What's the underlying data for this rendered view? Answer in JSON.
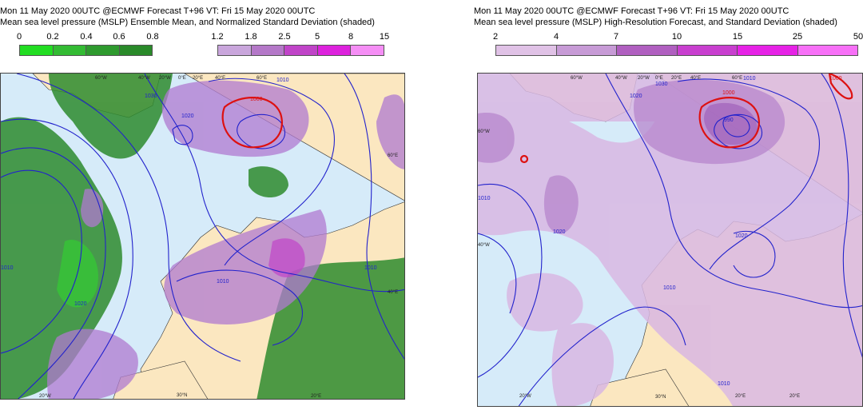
{
  "left_panel": {
    "title_line1": "Mon 11 May 2020 00UTC @ECMWF Forecast T+96 VT: Fri 15 May 2020 00UTC",
    "title_line2": "Mean sea level pressure (MSLP) Ensemble Mean, and Normalized Standard Deviation (shaded)",
    "legend_green": {
      "ticks": [
        "0",
        "0.2",
        "0.4",
        "0.6",
        "0.8"
      ],
      "colors": [
        "#22dd22",
        "#33bb33",
        "#2e9a2e",
        "#2a8a2a",
        "#2e7d32"
      ]
    },
    "legend_purple": {
      "ticks": [
        "1.2",
        "1.8",
        "2.5",
        "5",
        "8",
        "15"
      ],
      "colors": [
        "#c9a6dc",
        "#b478c8",
        "#c044c8",
        "#dd22dd",
        "#f58ef5"
      ]
    },
    "contour_labels": [
      "1000",
      "1010",
      "1020",
      "1030",
      "1010",
      "1020",
      "1010",
      "1010"
    ],
    "axis_labels": [
      "60°W",
      "40°W",
      "20°W",
      "0°E",
      "20°E",
      "40°E",
      "60°E",
      "60°E",
      "40°E",
      "20°W",
      "20°E",
      "30°N"
    ]
  },
  "right_panel": {
    "title_line1": "Mon 11 May 2020 00UTC @ECMWF Forecast T+96 VT: Fri 15 May 2020 00UTC",
    "title_line2": "Mean sea level pressure (MSLP) High-Resolution Forecast, and Standard Deviation (shaded)",
    "legend": {
      "ticks": [
        "2",
        "4",
        "7",
        "10",
        "15",
        "25",
        "50"
      ],
      "colors": [
        "#e0c2e6",
        "#c79bd6",
        "#b05fc0",
        "#c83fcf",
        "#e622e6",
        "#f770f7"
      ]
    },
    "contour_labels": [
      "1000",
      "1000",
      "990",
      "1010",
      "1020",
      "1030",
      "1020",
      "1010",
      "1010",
      "1020",
      "1010"
    ],
    "axis_labels": [
      "60°W",
      "40°W",
      "60°W",
      "40°W",
      "20°W",
      "0°E",
      "20°E",
      "40°E",
      "60°E",
      "20°W",
      "20°E",
      "30°N",
      "20°E"
    ]
  }
}
